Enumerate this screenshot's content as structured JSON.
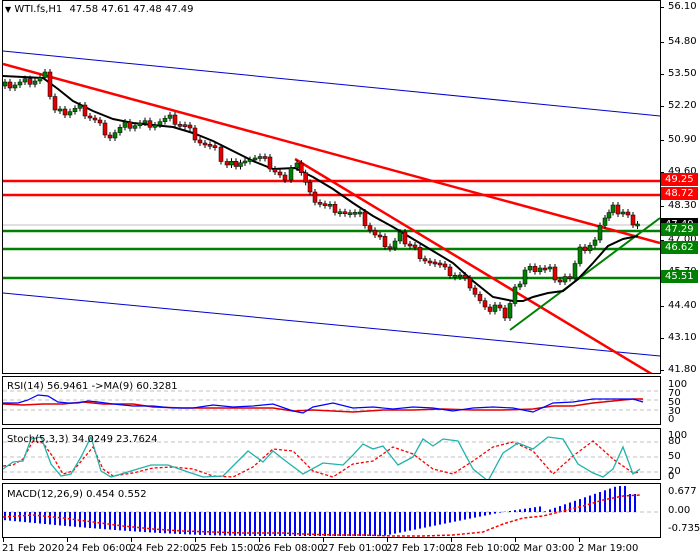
{
  "header": {
    "menu_icon": "triangle-down-icon",
    "symbol": "WTI.fs,H1",
    "ohlc": "47.58 47.61 47.48 47.49"
  },
  "main_axis": {
    "ticks": [
      "56.10",
      "54.80",
      "53.50",
      "52.20",
      "50.90",
      "49.60",
      "48.30",
      "47.00",
      "45.70",
      "44.40",
      "43.10",
      "41.80"
    ]
  },
  "levels": {
    "resistance_1": {
      "label": "49.25",
      "color": "#ff0000"
    },
    "resistance_2": {
      "label": "48.72",
      "color": "#ff0000"
    },
    "current": {
      "label": "47.49",
      "color": "#000000"
    },
    "support_1": {
      "label": "47.29",
      "color": "#008000"
    },
    "support_2": {
      "label": "46.62",
      "color": "#008000"
    },
    "support_3": {
      "label": "45.51",
      "color": "#008000"
    }
  },
  "rsi": {
    "title": "RSI(14) 56.9461  ->MA(9) 60.3281",
    "ticks": [
      "100",
      "70",
      "50",
      "30",
      "0"
    ]
  },
  "stoch": {
    "title": "Stoch(5,3,3) 34.0249 23.7624",
    "ticks": [
      "100",
      "80",
      "50",
      "20",
      "0"
    ]
  },
  "macd": {
    "title": "MACD(12,26,9) 0.454 0.552",
    "ticks": [
      "0.677",
      "0.00",
      "-0.735"
    ]
  },
  "time_axis": {
    "labels": [
      "21 Feb 2020",
      "24 Feb 06:00",
      "24 Feb 22:00",
      "25 Feb 15:00",
      "26 Feb 08:00",
      "27 Feb 01:00",
      "27 Feb 17:00",
      "28 Feb 10:00",
      "2 Mar 03:00",
      "2 Mar 19:00"
    ]
  },
  "colors": {
    "bull": "#008000",
    "bear": "#e00000",
    "ma": "#000000",
    "channel": "#0000cc",
    "trend_red": "#ff0000",
    "trend_green": "#008000",
    "rsi_line": "#0000ff",
    "rsi_ma": "#e00000",
    "stoch_main": "#20b2aa",
    "stoch_signal": "#ff0000",
    "macd_hist": "#0000ff",
    "macd_signal": "#ff0000"
  }
}
